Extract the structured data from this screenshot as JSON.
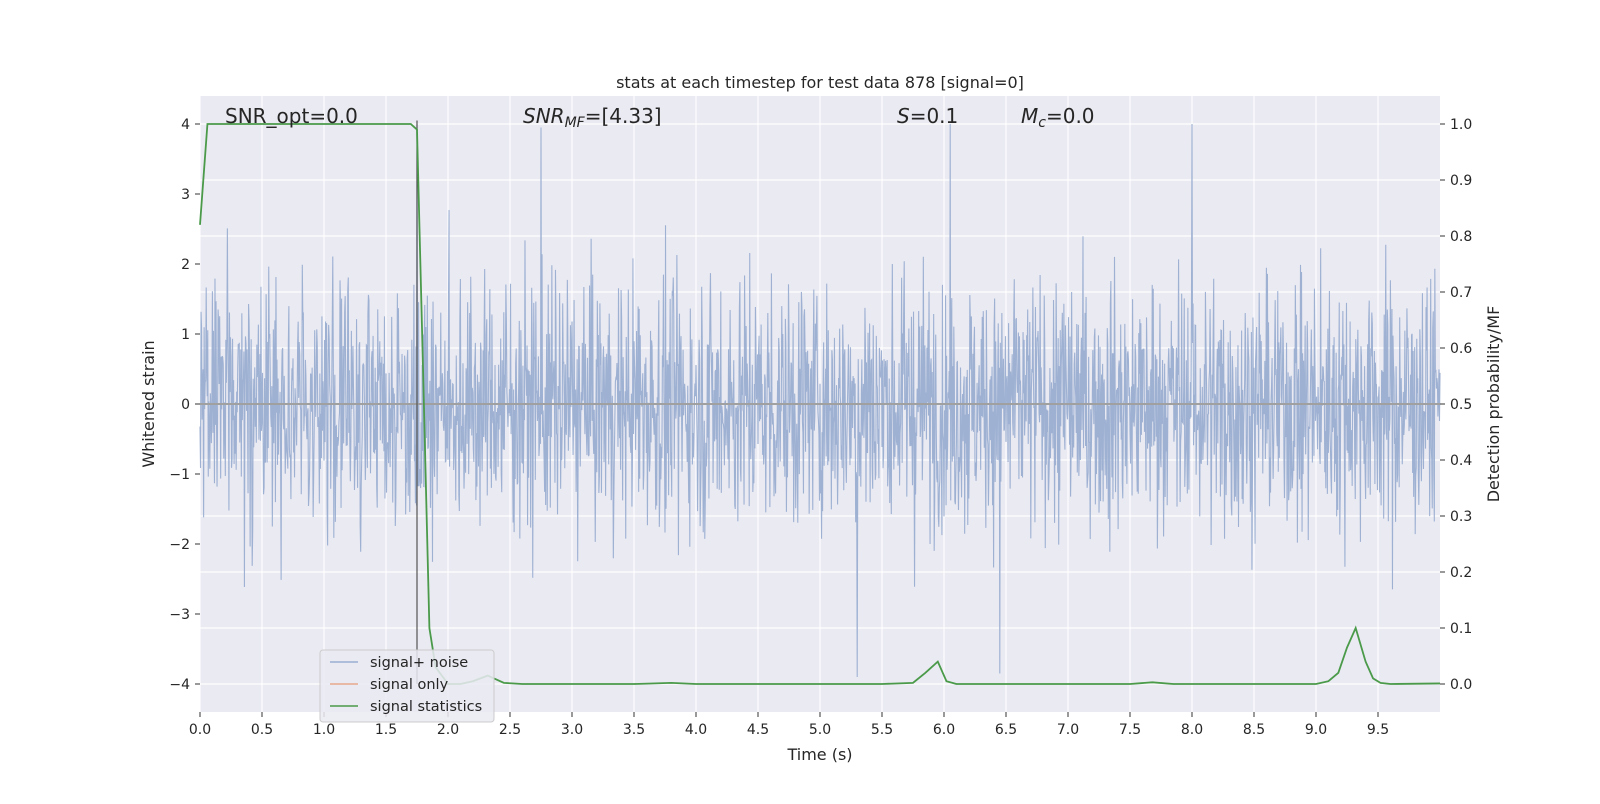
{
  "chart_data": {
    "type": "line",
    "title": "stats at each timestep for test data 878 [signal=0]",
    "xlabel": "Time (s)",
    "ylabel_left": "Whitened strain",
    "ylabel_right": "Detection probability/MF",
    "xlim": [
      0,
      10
    ],
    "ylim_left": [
      -4.4,
      4.4
    ],
    "ylim_right": [
      -0.05,
      1.05
    ],
    "x_ticks": [
      0.0,
      0.5,
      1.0,
      1.5,
      2.0,
      2.5,
      3.0,
      3.5,
      4.0,
      4.5,
      5.0,
      5.5,
      6.0,
      6.5,
      7.0,
      7.5,
      8.0,
      8.5,
      9.0,
      9.5
    ],
    "x_tick_labels": [
      "0.0",
      "0.5",
      "1.0",
      "1.5",
      "2.0",
      "2.5",
      "3.0",
      "3.5",
      "4.0",
      "4.5",
      "5.0",
      "5.5",
      "6.0",
      "6.5",
      "7.0",
      "7.5",
      "8.0",
      "8.5",
      "9.0",
      "9.5"
    ],
    "y_left_ticks": [
      -4,
      -3,
      -2,
      -1,
      0,
      1,
      2,
      3,
      4
    ],
    "y_left_tick_labels": [
      "−4",
      "−3",
      "−2",
      "−1",
      "0",
      "1",
      "2",
      "3",
      "4"
    ],
    "y_right_ticks": [
      0.0,
      0.1,
      0.2,
      0.3,
      0.4,
      0.5,
      0.6,
      0.7,
      0.8,
      0.9,
      1.0
    ],
    "y_right_tick_labels": [
      "0.0",
      "0.1",
      "0.2",
      "0.3",
      "0.4",
      "0.5",
      "0.6",
      "0.7",
      "0.8",
      "0.9",
      "1.0"
    ],
    "grid": true,
    "legend_position": "lower-left",
    "annotations": {
      "snr_opt": "SNR_opt=0.0",
      "snr_mf_base": "SNR",
      "snr_mf_sub": "MF",
      "snr_mf_value": "=[4.33]",
      "s_base": "S",
      "s_value": "=0.1",
      "mc_base": "M",
      "mc_sub": "c",
      "mc_value": "=0.0"
    },
    "series": [
      {
        "name": "signal+ noise",
        "color": "#9aaed1",
        "axis": "left",
        "style": "dense noise trace, approximately Gaussian, amplitude about ±2.5 with peaks near ±4",
        "noise_amplitude": 1.25,
        "spikes": [
          [
            1.75,
            4.05
          ],
          [
            2.75,
            3.95
          ],
          [
            6.05,
            4.0
          ],
          [
            8.0,
            4.02
          ],
          [
            5.3,
            -3.9
          ],
          [
            6.45,
            -3.85
          ]
        ]
      },
      {
        "name": "signal only",
        "color": "#e8a98b",
        "axis": "left",
        "x": [
          0,
          10
        ],
        "y": [
          0,
          0
        ]
      },
      {
        "name": "signal statistics",
        "color": "#4a9a4a",
        "axis": "right",
        "x": [
          0.0,
          0.06,
          0.12,
          1.7,
          1.75,
          1.8,
          1.85,
          1.9,
          2.0,
          2.1,
          2.2,
          2.32,
          2.45,
          2.6,
          3.0,
          3.5,
          3.8,
          4.0,
          4.5,
          5.0,
          5.5,
          5.75,
          5.85,
          5.95,
          6.02,
          6.1,
          6.5,
          7.0,
          7.5,
          7.68,
          7.85,
          8.0,
          8.5,
          9.0,
          9.1,
          9.18,
          9.25,
          9.32,
          9.4,
          9.46,
          9.52,
          9.6,
          10.0
        ],
        "y": [
          0.82,
          1.0,
          1.0,
          1.0,
          0.99,
          0.55,
          0.1,
          0.03,
          0.0,
          0.0,
          0.005,
          0.015,
          0.002,
          0.0,
          0.0,
          0.0,
          0.002,
          0.0,
          0.0,
          0.0,
          0.0,
          0.002,
          0.02,
          0.04,
          0.005,
          0.0,
          0.0,
          0.0,
          0.0,
          0.003,
          0.0,
          0.0,
          0.0,
          0.0,
          0.005,
          0.02,
          0.065,
          0.1,
          0.04,
          0.01,
          0.002,
          0.0,
          0.001
        ]
      }
    ]
  }
}
